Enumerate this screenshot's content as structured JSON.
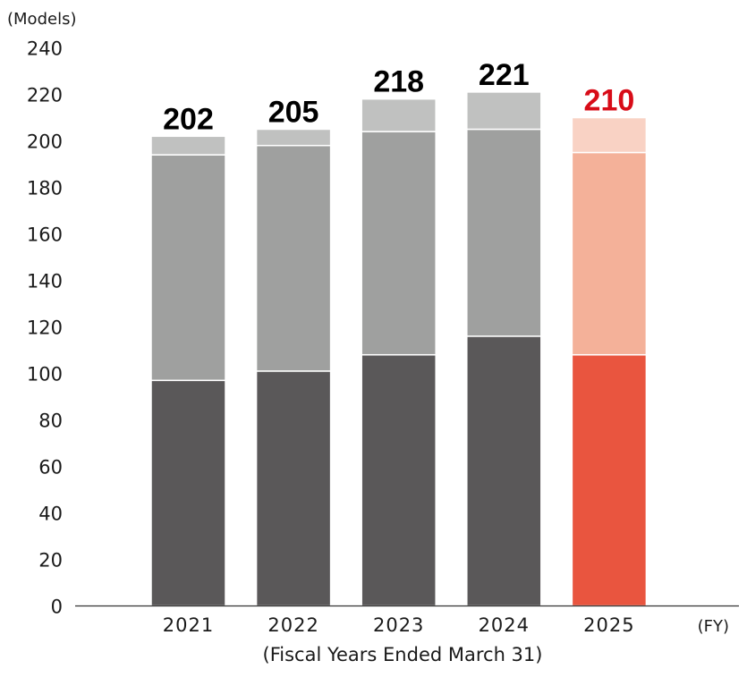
{
  "chart_data": {
    "type": "bar",
    "stacked": true,
    "y_unit_label": "(Models)",
    "x_unit_label": "(FY)",
    "x_sublabel": "(Fiscal Years Ended March 31)",
    "ylim": [
      0,
      240
    ],
    "y_ticks": [
      "0",
      "20",
      "40",
      "60",
      "80",
      "100",
      "120",
      "140",
      "160",
      "180",
      "200",
      "220",
      "240"
    ],
    "categories": [
      "2021",
      "2022",
      "2023",
      "2024",
      "2025"
    ],
    "series": [
      {
        "values": [
          97,
          101,
          108,
          116,
          108
        ]
      },
      {
        "values": [
          97,
          97,
          96,
          89,
          87
        ]
      },
      {
        "values": [
          8,
          7,
          14,
          16,
          15
        ]
      }
    ],
    "totals": [
      "202",
      "205",
      "218",
      "221",
      "210"
    ],
    "colors": {
      "historical": [
        "#5a5859",
        "#9fa09f",
        "#c0c1c0"
      ],
      "highlight": [
        "#e9553f",
        "#f4b199",
        "#f9d2c4"
      ],
      "highlight_total": "#d80c18",
      "total": "#000000"
    },
    "highlight_index": 4,
    "grid": false
  }
}
